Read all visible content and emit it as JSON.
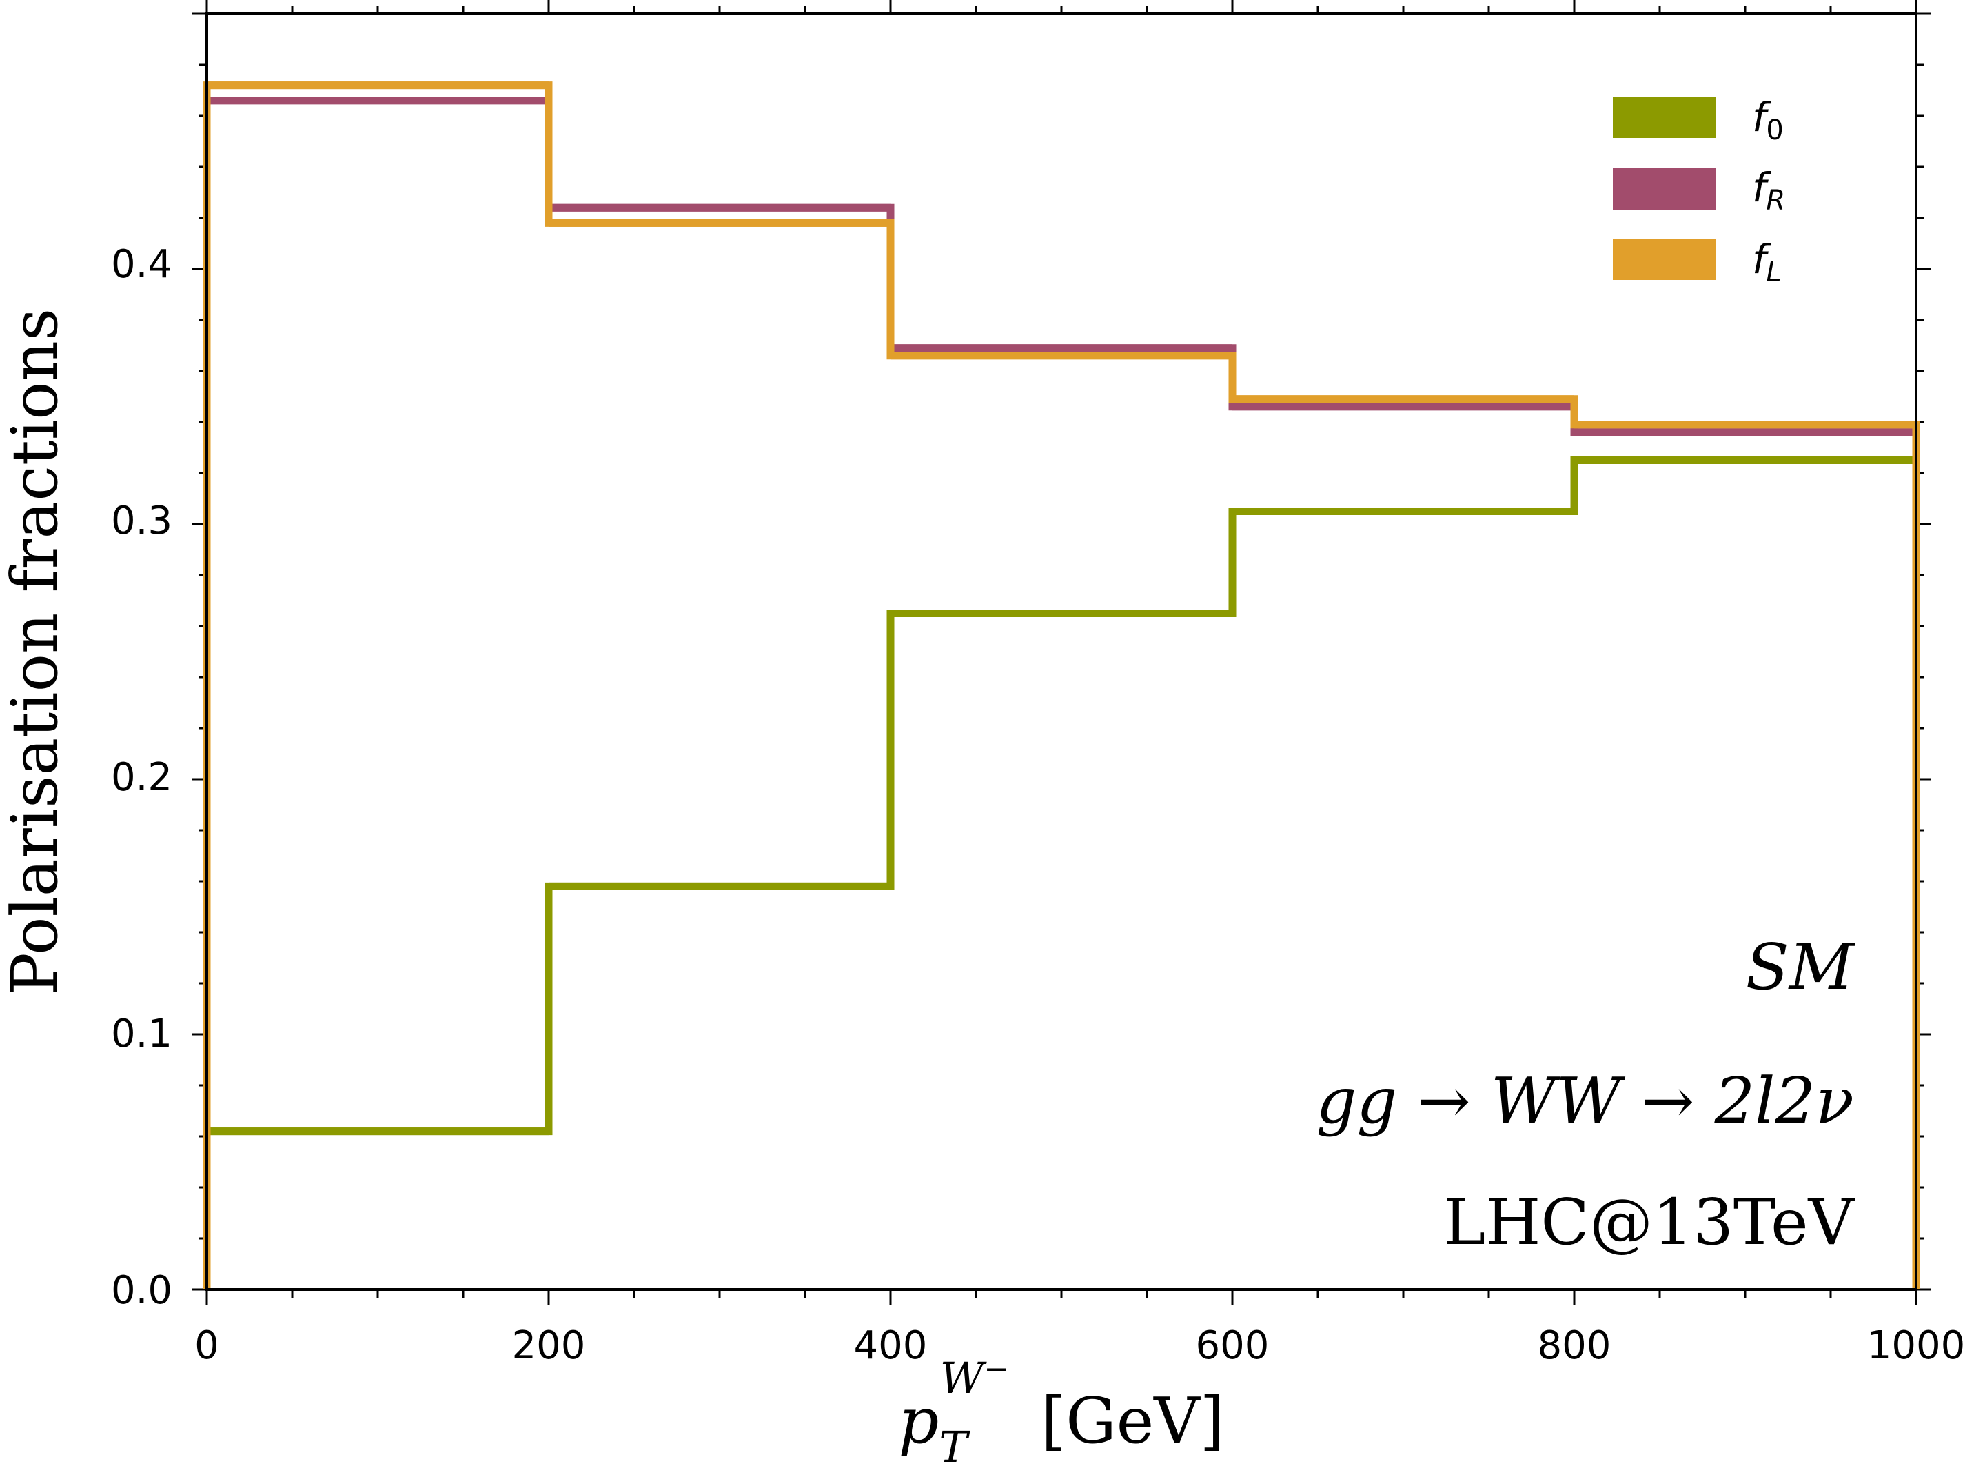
{
  "chart_data": {
    "type": "step",
    "bin_edges": [
      0,
      200,
      400,
      600,
      800,
      1000
    ],
    "series": [
      {
        "name": "f0",
        "symbol": "f",
        "subscript": "0",
        "color": "#8c9a00",
        "values": [
          0.062,
          0.158,
          0.265,
          0.305,
          0.325
        ]
      },
      {
        "name": "fR",
        "symbol": "f",
        "subscript": "R",
        "color": "#a24c6c",
        "values": [
          0.466,
          0.424,
          0.369,
          0.346,
          0.336
        ]
      },
      {
        "name": "fL",
        "symbol": "f",
        "subscript": "L",
        "color": "#e19f2b",
        "values": [
          0.472,
          0.418,
          0.366,
          0.349,
          0.339
        ]
      }
    ],
    "xlim": [
      0,
      1000
    ],
    "ylim": [
      0,
      0.5
    ],
    "xticks": [
      "0",
      "200",
      "400",
      "600",
      "800",
      "1000"
    ],
    "yticks": [
      "0.0",
      "0.1",
      "0.2",
      "0.3",
      "0.4"
    ],
    "ylabel": "Polarisation fractions",
    "xlabel": {
      "main": "p",
      "sub": "T",
      "sup": "W",
      "sup_sign": "−",
      "unit": "[GeV]"
    },
    "annotations": {
      "model": "SM",
      "process": "gg → WW → 2l2ν",
      "collider": "LHC@13TeV"
    },
    "legend_position": "top-right"
  }
}
